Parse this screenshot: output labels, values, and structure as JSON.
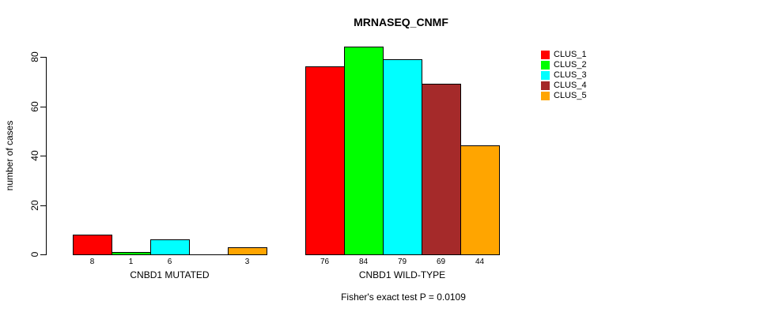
{
  "chart_data": {
    "type": "bar",
    "title": "MRNASEQ_CNMF",
    "ylabel": "number of cases",
    "xlabel": "",
    "ylim": [
      0,
      80
    ],
    "yticks": [
      0,
      20,
      40,
      60,
      80
    ],
    "grid": false,
    "legend_position": "right",
    "series_names": [
      "CLUS_1",
      "CLUS_2",
      "CLUS_3",
      "CLUS_4",
      "CLUS_5"
    ],
    "colors": [
      "#ff0000",
      "#00ff00",
      "#00ffff",
      "#a52a2a",
      "#ffa500"
    ],
    "groups": [
      {
        "label": "CNBD1 MUTATED",
        "values": [
          8,
          1,
          6,
          0,
          3
        ],
        "value_labels": [
          "8",
          "1",
          "6",
          "",
          "3"
        ]
      },
      {
        "label": "CNBD1 WILD-TYPE",
        "values": [
          76,
          84,
          79,
          69,
          44
        ],
        "value_labels": [
          "76",
          "84",
          "79",
          "69",
          "44"
        ]
      }
    ],
    "annotation": "Fisher's exact test P = 0.0109"
  }
}
